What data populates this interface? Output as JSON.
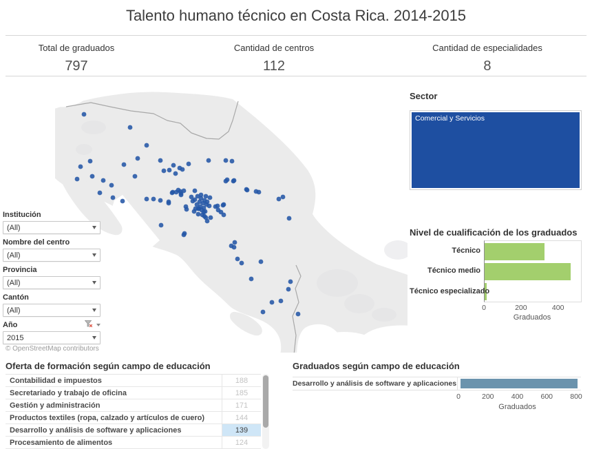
{
  "title": "Talento humano técnico en Costa Rica. 2014-2015",
  "kpis": [
    {
      "label": "Total de graduados",
      "value": "797"
    },
    {
      "label": "Cantidad de centros",
      "value": "112"
    },
    {
      "label": "Cantidad de especialidades",
      "value": "8"
    }
  ],
  "filters": [
    {
      "id": "institucion",
      "label": "Institución",
      "value": "(All)",
      "has_filter_icon": false
    },
    {
      "id": "nombre-del-centro",
      "label": "Nombre del centro",
      "value": "(All)",
      "has_filter_icon": false
    },
    {
      "id": "provincia",
      "label": "Provincia",
      "value": "(All)",
      "has_filter_icon": false
    },
    {
      "id": "canton",
      "label": "Cantón",
      "value": "(All)",
      "has_filter_icon": false
    },
    {
      "id": "ano",
      "label": "Año",
      "value": "2015",
      "has_filter_icon": true
    }
  ],
  "sector_legend": {
    "title": "Sector",
    "item": "Comercial y Servicios",
    "color": "#1e4fa1"
  },
  "map": {
    "attribution": "© OpenStreetMap contributors",
    "colors": {
      "dot": "#2456a6",
      "land": "#ebebeb",
      "border": "#a8a8a8"
    },
    "points": [
      [
        42,
        41
      ],
      [
        109,
        60
      ],
      [
        133,
        86
      ],
      [
        51,
        109
      ],
      [
        37,
        117
      ],
      [
        120,
        105
      ],
      [
        100,
        114
      ],
      [
        153,
        108
      ],
      [
        32,
        135
      ],
      [
        54,
        131
      ],
      [
        70,
        137
      ],
      [
        82,
        144
      ],
      [
        65,
        155
      ],
      [
        84,
        162
      ],
      [
        98,
        167
      ],
      [
        116,
        131
      ],
      [
        158,
        123
      ],
      [
        166,
        122
      ],
      [
        172,
        115
      ],
      [
        181,
        119
      ],
      [
        185,
        121
      ],
      [
        175,
        127
      ],
      [
        194,
        113
      ],
      [
        223,
        108
      ],
      [
        248,
        108
      ],
      [
        257,
        109
      ],
      [
        250,
        136
      ],
      [
        260,
        137
      ],
      [
        279,
        151
      ],
      [
        296,
        154
      ],
      [
        325,
        164
      ],
      [
        331,
        161
      ],
      [
        133,
        164
      ],
      [
        143,
        164
      ],
      [
        153,
        166
      ],
      [
        165,
        170
      ],
      [
        171,
        154
      ],
      [
        179,
        151
      ],
      [
        183,
        156
      ],
      [
        187,
        152
      ],
      [
        191,
        179
      ],
      [
        202,
        182
      ],
      [
        208,
        186
      ],
      [
        216,
        183
      ],
      [
        219,
        191
      ],
      [
        226,
        191
      ],
      [
        233,
        175
      ],
      [
        237,
        180
      ],
      [
        244,
        173
      ],
      [
        245,
        187
      ],
      [
        340,
        192
      ],
      [
        154,
        202
      ],
      [
        187,
        216
      ],
      [
        256,
        232
      ],
      [
        260,
        234
      ],
      [
        265,
        251
      ],
      [
        271,
        257
      ],
      [
        299,
        255
      ],
      [
        285,
        280
      ],
      [
        342,
        284
      ],
      [
        339,
        295
      ],
      [
        315,
        314
      ],
      [
        328,
        312
      ],
      [
        302,
        328
      ],
      [
        353,
        331
      ],
      [
        248,
        138
      ],
      [
        259,
        138
      ],
      [
        278,
        150
      ],
      [
        292,
        153
      ],
      [
        261,
        227
      ],
      [
        188,
        214
      ],
      [
        190,
        175
      ],
      [
        204,
        178
      ],
      [
        209,
        178
      ],
      [
        214,
        187
      ],
      [
        217,
        189
      ],
      [
        236,
        174
      ],
      [
        241,
        183
      ],
      [
        245,
        172
      ],
      [
        221,
        196
      ],
      [
        200,
        167
      ],
      [
        198,
        161
      ],
      [
        203,
        152
      ],
      [
        165,
        168
      ],
      [
        170,
        155
      ],
      [
        176,
        154
      ],
      [
        182,
        153
      ],
      [
        183,
        158
      ],
      [
        207,
        160
      ],
      [
        212,
        163
      ],
      [
        217,
        166
      ],
      [
        210,
        168
      ],
      [
        215,
        170
      ],
      [
        220,
        172
      ],
      [
        206,
        172
      ],
      [
        211,
        175
      ],
      [
        216,
        177
      ],
      [
        221,
        168
      ],
      [
        224,
        174
      ],
      [
        208,
        178
      ],
      [
        213,
        180
      ],
      [
        218,
        182
      ],
      [
        203,
        165
      ],
      [
        225,
        162
      ],
      [
        212,
        158
      ],
      [
        219,
        160
      ]
    ]
  },
  "chart_data": [
    {
      "type": "bar",
      "orientation": "horizontal",
      "title": "Nivel de cualificación de los graduados",
      "categories": [
        "Técnico",
        "Técnico medio",
        "Técnico especializado"
      ],
      "values": [
        322,
        463,
        12
      ],
      "xlabel": "Graduados",
      "xticks": [
        0,
        200,
        400
      ],
      "xlim": [
        0,
        520
      ],
      "bar_color": "#a3cf6d",
      "legend": "none",
      "grid": false
    },
    {
      "type": "bar",
      "orientation": "horizontal",
      "title": "Graduados según campo de educación",
      "categories": [
        "Desarrollo y análisis de software y aplicaciones"
      ],
      "values": [
        797
      ],
      "xlabel": "Graduados",
      "xticks": [
        0,
        200,
        400,
        600,
        800
      ],
      "xlim": [
        0,
        830
      ],
      "bar_color": "#6b93ad",
      "legend": "none",
      "grid": false
    },
    {
      "type": "table",
      "title": "Oferta de formación según campo de educación",
      "rows": [
        {
          "label": "Contabilidad e impuestos",
          "value": 188,
          "highlighted": false
        },
        {
          "label": "Secretariado y trabajo de oficina",
          "value": 185,
          "highlighted": false
        },
        {
          "label": "Gestión y administración",
          "value": 171,
          "highlighted": false
        },
        {
          "label": "Productos textiles (ropa, calzado y artículos de cuero)",
          "value": 144,
          "highlighted": false
        },
        {
          "label": "Desarrollo y análisis de software y aplicaciones",
          "value": 139,
          "highlighted": true
        },
        {
          "label": "Procesamiento de alimentos",
          "value": 124,
          "highlighted": false
        }
      ]
    }
  ]
}
